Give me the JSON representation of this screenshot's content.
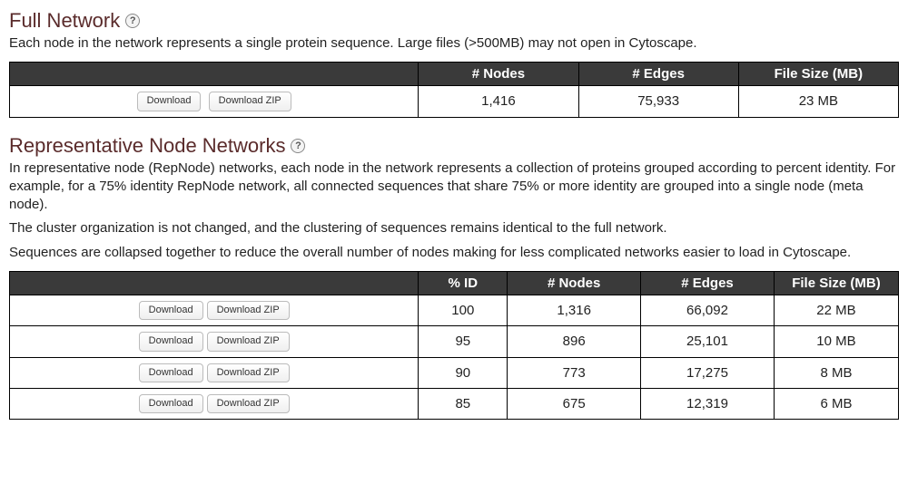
{
  "full_network": {
    "title": "Full Network",
    "desc": "Each node in the network represents a single protein sequence. Large files (>500MB) may not open in Cytoscape.",
    "headers": {
      "nodes": "# Nodes",
      "edges": "# Edges",
      "filesize": "File Size (MB)"
    },
    "buttons": {
      "download": "Download",
      "download_zip": "Download ZIP"
    },
    "row": {
      "nodes": "1,416",
      "edges": "75,933",
      "filesize": "23 MB"
    }
  },
  "repnode": {
    "title": "Representative Node Networks",
    "desc1": "In representative node (RepNode) networks, each node in the network represents a collection of proteins grouped according to percent identity. For example, for a 75% identity RepNode network, all connected sequences that share 75% or more identity are grouped into a single node (meta node).",
    "desc2": "The cluster organization is not changed, and the clustering of sequences remains identical to the full network.",
    "desc3": "Sequences are collapsed together to reduce the overall number of nodes making for less complicated networks easier to load in Cytoscape.",
    "headers": {
      "pct_id": "% ID",
      "nodes": "# Nodes",
      "edges": "# Edges",
      "filesize": "File Size (MB)"
    },
    "buttons": {
      "download": "Download",
      "download_zip": "Download ZIP"
    },
    "rows": [
      {
        "pct_id": "100",
        "nodes": "1,316",
        "edges": "66,092",
        "filesize": "22 MB"
      },
      {
        "pct_id": "95",
        "nodes": "896",
        "edges": "25,101",
        "filesize": "10 MB"
      },
      {
        "pct_id": "90",
        "nodes": "773",
        "edges": "17,275",
        "filesize": "8 MB"
      },
      {
        "pct_id": "85",
        "nodes": "675",
        "edges": "12,319",
        "filesize": "6 MB"
      }
    ]
  },
  "help_glyph": "?"
}
